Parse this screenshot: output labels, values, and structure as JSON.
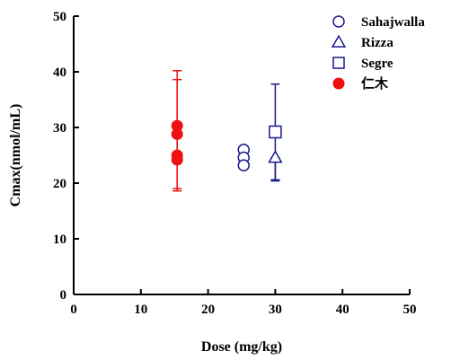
{
  "chart_data": {
    "type": "scatter",
    "xlabel": "Dose (mg/kg)",
    "ylabel": "Cmax(nmol/mL)",
    "xlim": [
      0,
      50
    ],
    "ylim": [
      0,
      50
    ],
    "x_ticks": [
      "0",
      "10",
      "20",
      "30",
      "40",
      "50"
    ],
    "y_ticks": [
      "0",
      "10",
      "20",
      "30",
      "40",
      "50"
    ],
    "grid": false,
    "legend_position": "top-right",
    "series": [
      {
        "name": "Sahajwalla",
        "marker": "open-circle",
        "color": "#1a1a8c",
        "points": [
          {
            "x": 25.3,
            "y": 26.0
          },
          {
            "x": 25.3,
            "y": 24.6
          },
          {
            "x": 25.3,
            "y": 23.2
          }
        ]
      },
      {
        "name": "Rizza",
        "marker": "open-triangle",
        "color": "#1a1a8c",
        "points": [
          {
            "x": 30.0,
            "y": 24.6,
            "err_low": 20.4,
            "err_high": 24.6
          }
        ]
      },
      {
        "name": "Segre",
        "marker": "open-square",
        "color": "#1a1a8c",
        "points": [
          {
            "x": 30.0,
            "y": 29.2,
            "err_low": 20.6,
            "err_high": 37.8
          }
        ]
      },
      {
        "name": "仁木",
        "marker": "filled-circle",
        "color": "#ee1111",
        "points": [
          {
            "x": 15.4,
            "y": 30.3,
            "err_low": 18.6,
            "err_high": 40.2
          },
          {
            "x": 15.4,
            "y": 28.8,
            "err_low": 19.0,
            "err_high": 38.6
          },
          {
            "x": 15.4,
            "y": 25.0
          },
          {
            "x": 15.4,
            "y": 24.2
          }
        ]
      }
    ]
  }
}
